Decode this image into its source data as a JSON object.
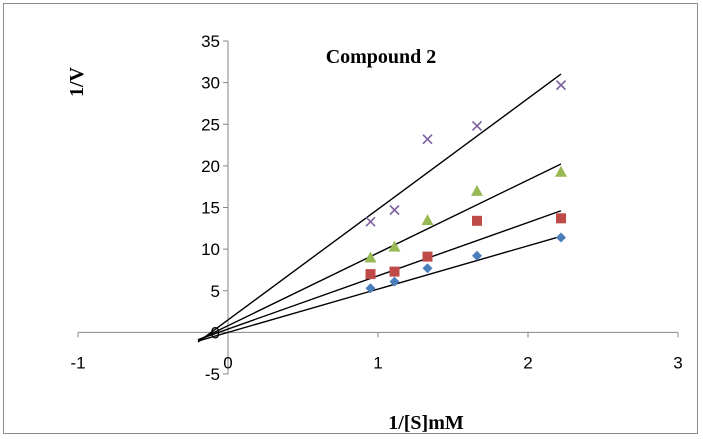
{
  "chart_data": {
    "type": "scatter",
    "title": "Compound 2",
    "xlabel": "1/[S]mM",
    "ylabel": "1/V",
    "xlim": [
      -1,
      3
    ],
    "ylim": [
      -5,
      35
    ],
    "x_ticks": [
      -1,
      0,
      1,
      2,
      3
    ],
    "y_ticks": [
      -5,
      0,
      5,
      10,
      15,
      20,
      25,
      30,
      35
    ],
    "grid": false,
    "legend": "none",
    "series": [
      {
        "marker": "diamond",
        "color": "#4a7ebb",
        "x": [
          0.95,
          1.11,
          1.33,
          1.66,
          2.22
        ],
        "y": [
          5.3,
          6.1,
          7.7,
          9.2,
          11.4
        ],
        "trendline": {
          "intercept": 0,
          "slope": 5.2
        }
      },
      {
        "marker": "square",
        "color": "#be4b48",
        "x": [
          0.95,
          1.11,
          1.33,
          1.66,
          2.22
        ],
        "y": [
          7.0,
          7.3,
          9.1,
          13.4,
          13.7
        ],
        "trendline": {
          "intercept": 0.4,
          "slope": 6.4
        }
      },
      {
        "marker": "triangle",
        "color": "#98b954",
        "x": [
          0.95,
          1.11,
          1.33,
          1.66,
          2.22
        ],
        "y": [
          9.0,
          10.3,
          13.5,
          17.0,
          19.3
        ],
        "trendline": {
          "intercept": 0.8,
          "slope": 8.75
        }
      },
      {
        "marker": "x",
        "color": "#7d60a0",
        "x": [
          0.95,
          1.11,
          1.33,
          1.66,
          2.22
        ],
        "y": [
          13.3,
          14.7,
          23.2,
          24.8,
          29.7
        ],
        "trendline": {
          "intercept": 1.5,
          "slope": 13.3
        }
      }
    ]
  }
}
